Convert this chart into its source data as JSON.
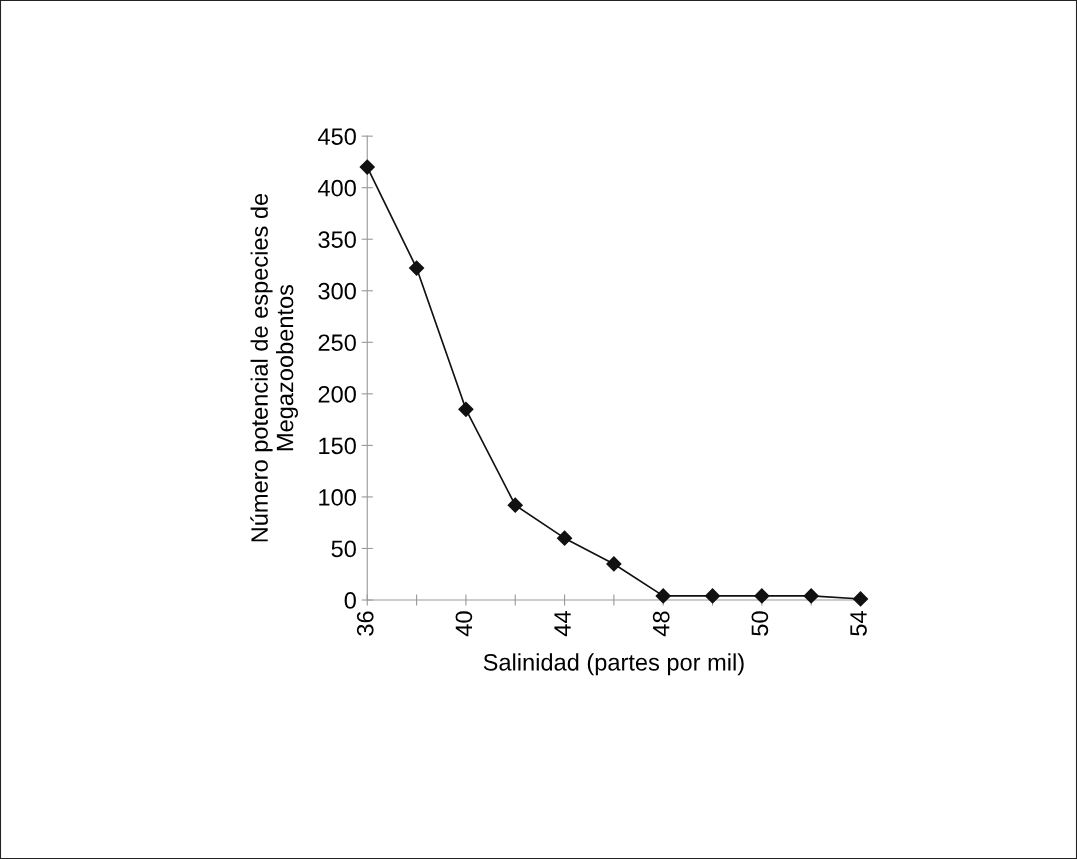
{
  "chart_data": {
    "type": "line",
    "xlabel": "Salinidad (partes por mil)",
    "ylabel": "Número potencial de especies de\nMegazoobentos",
    "categories": [
      "36",
      null,
      "40",
      null,
      "44",
      null,
      "48",
      null,
      "50",
      null,
      "54"
    ],
    "series": [
      {
        "color": "#111111",
        "values": [
          420,
          322,
          185,
          92,
          60,
          35,
          4,
          4,
          4,
          4,
          1
        ]
      }
    ],
    "ylim": [
      0,
      450
    ],
    "yticks": [
      0,
      50,
      100,
      150,
      200,
      250,
      300,
      350,
      400,
      450
    ],
    "marker": "diamond",
    "line_style": "solid",
    "grid": false,
    "legend": false
  }
}
